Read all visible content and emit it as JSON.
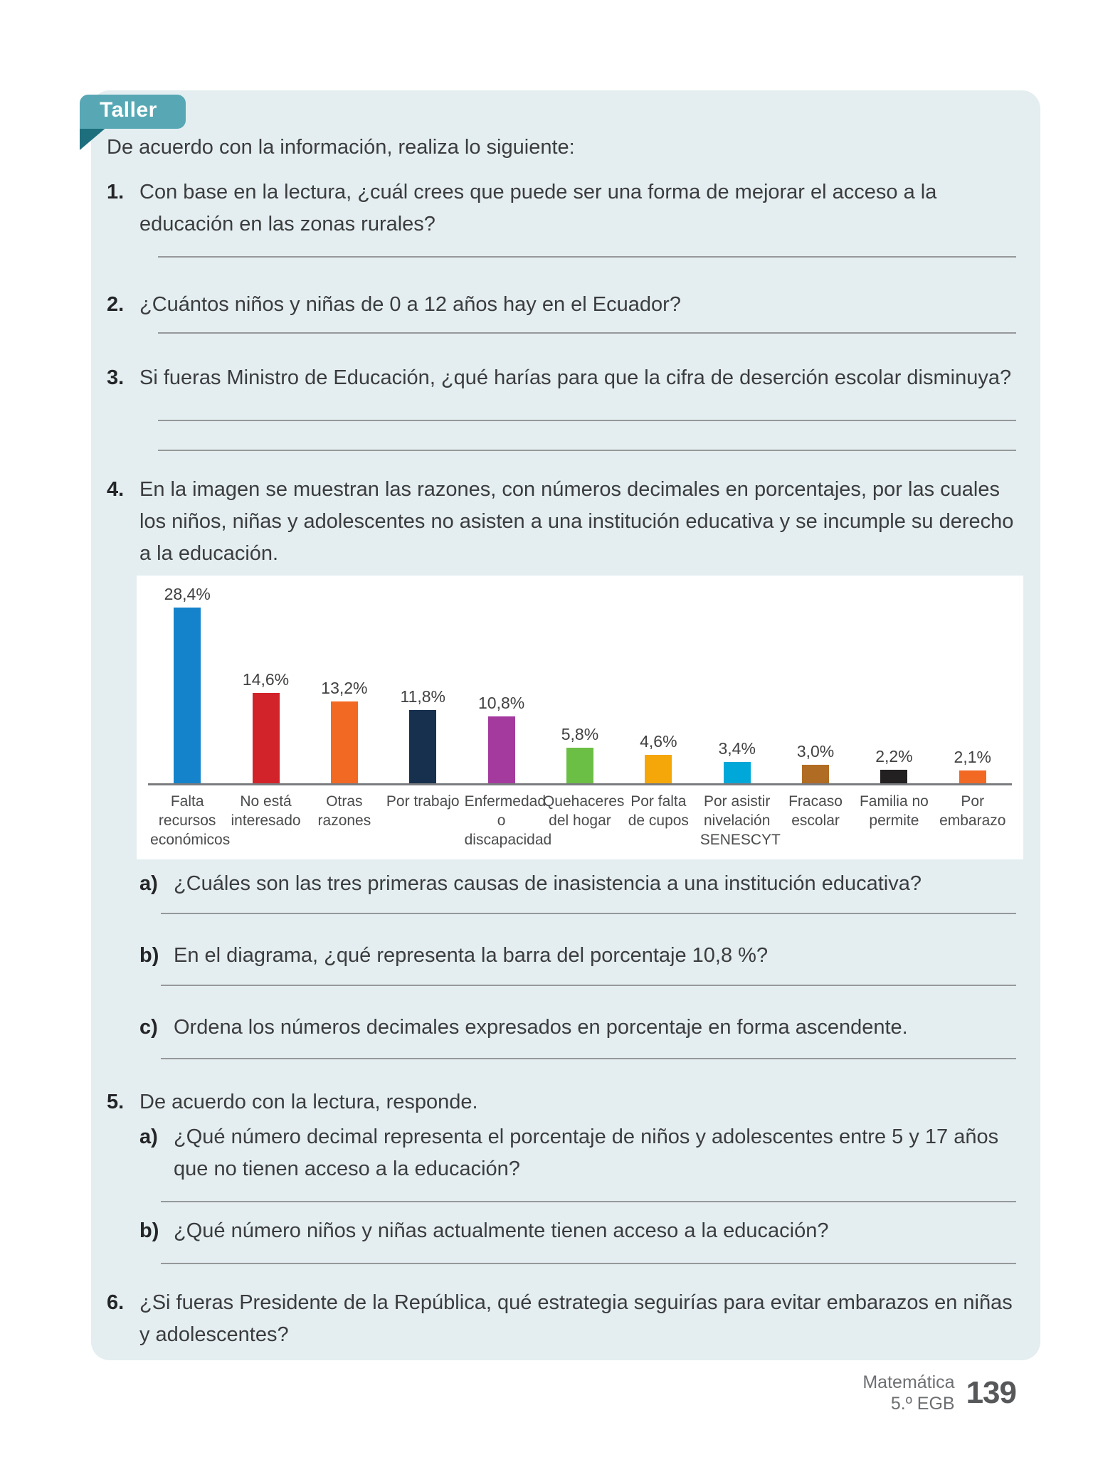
{
  "tab": {
    "label": "Taller"
  },
  "intro": "De acuerdo con la información, realiza lo siguiente:",
  "questions": {
    "q1": {
      "num": "1.",
      "text": "Con base en la lectura, ¿cuál crees que puede ser una forma de mejorar el acceso a la educación en las zonas rurales?"
    },
    "q2": {
      "num": "2.",
      "text": "¿Cuántos niños y niñas de 0 a 12 años hay en el Ecuador?"
    },
    "q3": {
      "num": "3.",
      "text": "Si fueras Ministro de Educación, ¿qué harías para que la cifra de deserción escolar disminuya?"
    },
    "q4": {
      "num": "4.",
      "text": "En la imagen se muestran las razones, con números decimales en porcentajes, por las cuales los niños, niñas y adolescentes no asisten a una institución educativa y se incumple su derecho a la educación."
    },
    "q4a": {
      "num": "a)",
      "text": "¿Cuáles son las tres primeras causas de inasistencia a una institución educativa?"
    },
    "q4b": {
      "num": "b)",
      "text": "En el diagrama, ¿qué representa la barra del porcentaje 10,8 %?"
    },
    "q4c": {
      "num": "c)",
      "text": "Ordena los números decimales expresados en porcentaje en forma ascendente."
    },
    "q5": {
      "num": "5.",
      "text": "De acuerdo con la lectura, responde."
    },
    "q5a": {
      "num": "a)",
      "text": "¿Qué número decimal representa el porcentaje de niños y adolescentes entre 5 y 17 años que no tienen acceso a la educación?"
    },
    "q5b": {
      "num": "b)",
      "text": "¿Qué número niños y niñas actualmente tienen acceso a la educación?"
    },
    "q6": {
      "num": "6.",
      "text": "¿Si fueras Presidente de la República, qué estrategia seguirías para evitar embarazos en niñas y adolescentes?"
    }
  },
  "chart_data": {
    "type": "bar",
    "title": "",
    "xlabel": "",
    "ylabel": "",
    "ylim": [
      0,
      30
    ],
    "grid": false,
    "legend": false,
    "categories": [
      "Falta recursos económicos",
      "No está interesado",
      "Otras razones",
      "Por trabajo",
      "Enfermedad o discapacidad",
      "Quehaceres del hogar",
      "Por falta de cupos",
      "Por asistir nivelación SENESCYT",
      "Fracaso escolar",
      "Familia no permite",
      "Por embarazo"
    ],
    "values": [
      28.4,
      14.6,
      13.2,
      11.8,
      10.8,
      5.8,
      4.6,
      3.4,
      3.0,
      2.2,
      2.1
    ],
    "value_labels": [
      "28,4%",
      "14,6%",
      "13,2%",
      "11,8%",
      "10,8%",
      "5,8%",
      "4,6%",
      "3,4%",
      "3,0%",
      "2,2%",
      "2,1%"
    ],
    "colors": [
      "#1483cb",
      "#d2232a",
      "#f26924",
      "#17304e",
      "#a53a9e",
      "#6cbf45",
      "#f5a70a",
      "#00a8d9",
      "#b16c23",
      "#232021",
      "#f26924"
    ]
  },
  "footer": {
    "subject": "Matemática",
    "grade": "5.º EGB",
    "page": "139"
  },
  "colors": {
    "panel_bg": "#e4eef0",
    "tab_bg": "#57a8b4",
    "tab_fold": "#1e6f7e",
    "answer_line": "#96989a",
    "axis": "#797b7e",
    "text": "#3b3c3e"
  }
}
